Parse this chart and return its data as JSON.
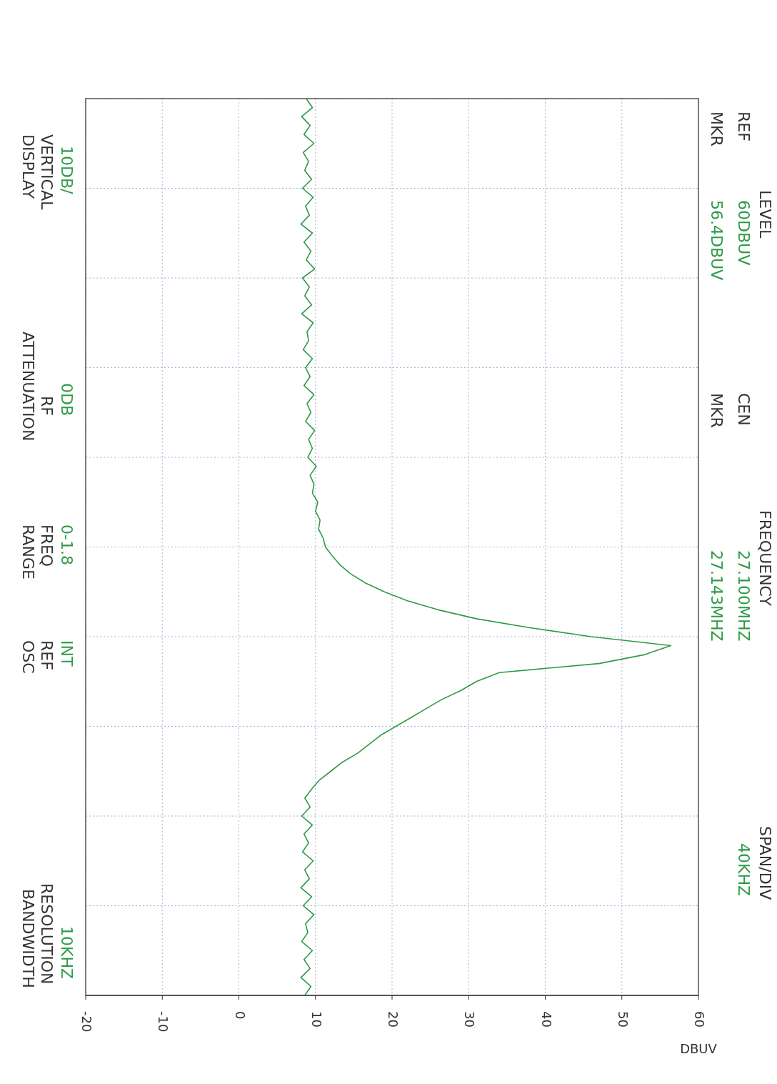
{
  "chart_data": {
    "type": "line",
    "orientation": "horizontal",
    "xlabel": "DBUV",
    "xlim": [
      -20,
      60
    ],
    "xticks": [
      -20,
      -10,
      0,
      10,
      20,
      30,
      40,
      50,
      60
    ],
    "grid": true,
    "categories": [
      null,
      null,
      null,
      null,
      null,
      null,
      null,
      null,
      null,
      null,
      null,
      null,
      null,
      null,
      null,
      null,
      null,
      null,
      null,
      null,
      null,
      null,
      null,
      null,
      null,
      null,
      null,
      null,
      null,
      null,
      null,
      null,
      null,
      null,
      null,
      null,
      null,
      null,
      null,
      null,
      null,
      null,
      null,
      null,
      null,
      null,
      null,
      null,
      null,
      null,
      null,
      null,
      null,
      null,
      null,
      null,
      null,
      null,
      null,
      null,
      null,
      null,
      null,
      null,
      null,
      null,
      null,
      null,
      null,
      null,
      null,
      null,
      null,
      null,
      null,
      null,
      null,
      null,
      null,
      null,
      null,
      null,
      null,
      null,
      null,
      null,
      null,
      null,
      null,
      null,
      null,
      null,
      null,
      null,
      null,
      null,
      null,
      null,
      null,
      null,
      null
    ],
    "series": [
      {
        "color": "#2e9a46",
        "values": [
          8.8,
          9.6,
          8.2,
          9.3,
          8.5,
          9.8,
          8.4,
          9.1,
          8.6,
          9.5,
          8.3,
          9.7,
          8.7,
          9.2,
          8.1,
          9.6,
          8.5,
          9.4,
          8.8,
          9.9,
          8.3,
          9.2,
          8.6,
          9.5,
          8.2,
          9.7,
          8.9,
          9.1,
          8.4,
          9.6,
          8.7,
          9.3,
          8.5,
          9.8,
          8.9,
          9.4,
          8.7,
          9.9,
          9.1,
          9.6,
          9.0,
          10.1,
          9.3,
          9.8,
          9.6,
          10.3,
          10.0,
          10.6,
          10.4,
          11.0,
          11.3,
          12.2,
          13.2,
          14.6,
          16.5,
          19.0,
          22.0,
          26.0,
          31.0,
          38.0,
          46.0,
          56.4,
          53.0,
          47.0,
          34.0,
          31.0,
          29.0,
          26.5,
          24.5,
          22.5,
          20.5,
          18.5,
          17.0,
          15.5,
          13.5,
          12.0,
          10.5,
          9.5,
          8.6,
          9.3,
          8.2,
          9.6,
          8.5,
          9.1,
          8.3,
          9.7,
          8.6,
          9.2,
          8.1,
          9.5,
          8.4,
          9.8,
          8.7,
          9.0,
          8.2,
          9.6,
          8.5,
          9.3,
          8.1,
          9.4,
          8.6
        ]
      }
    ],
    "annotations": [
      "LEVEL",
      "FREQUENCY",
      "SPAN/DIV",
      "REF",
      "60DBUV",
      "CEN",
      "27.100MHZ",
      "40KHZ",
      "MKR",
      "56.4DBUV",
      "MKR",
      "27.143MHZ",
      "10DB/",
      "0DB",
      "0-1.8",
      "INT",
      "10KHZ",
      "VERTICAL",
      "RF",
      "FREQ",
      "REF",
      "RESOLUTION",
      "DISPLAY",
      "ATTENUATION",
      "RANGE",
      "OSC",
      "BANDWIDTH"
    ]
  }
}
